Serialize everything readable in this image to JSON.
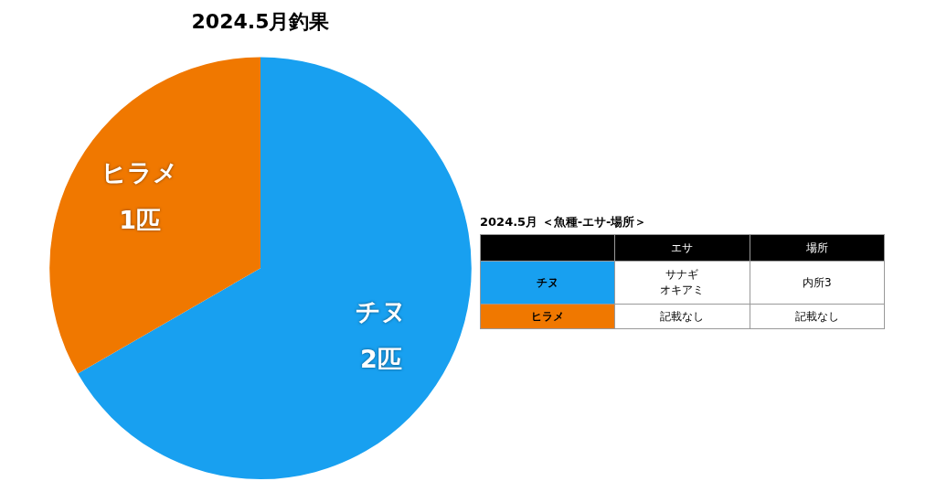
{
  "chart_data": [
    {
      "type": "pie",
      "title": "2024.5月釣果",
      "categories": [
        "チヌ",
        "ヒラメ"
      ],
      "values": [
        2,
        1
      ],
      "colors": [
        "#18a0f0",
        "#f07800"
      ],
      "value_labels": [
        "2匹",
        "1匹"
      ],
      "legend": false
    },
    {
      "type": "other",
      "title": "2024.5月 ＜魚種-エサ-場所＞",
      "categories": [
        null,
        "エサ",
        "場所"
      ],
      "y_categories": [
        "チヌ",
        "ヒラメ"
      ],
      "cell_labels": [
        [
          [
            "サナギ",
            "オキアミ"
          ],
          "内所3"
        ],
        [
          "記載なし",
          "記載なし"
        ]
      ]
    }
  ]
}
